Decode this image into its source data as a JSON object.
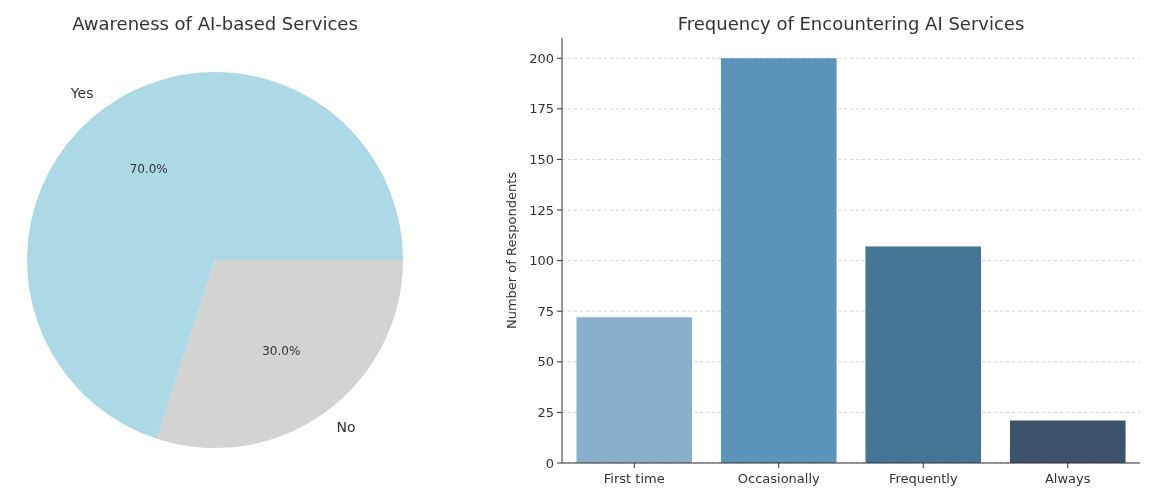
{
  "chart_data": [
    {
      "type": "pie",
      "title": "Awareness of AI-based Services",
      "categories": [
        "Yes",
        "No"
      ],
      "values": [
        70,
        30
      ],
      "colors": [
        "#add8e6",
        "#d3d3d3"
      ],
      "value_labels": [
        "70.0%",
        "30.0%"
      ]
    },
    {
      "type": "bar",
      "title": "Frequency of Encountering AI Services",
      "ylabel": "Number of Respondents",
      "categories": [
        "First time",
        "Occasionally",
        "Frequently",
        "Always"
      ],
      "values": [
        72,
        200,
        107,
        21
      ],
      "colors": [
        "#8aafca",
        "#5b93b9",
        "#447594",
        "#3d536a"
      ],
      "ylim": [
        0,
        210
      ],
      "yticks": [
        0,
        25,
        50,
        75,
        100,
        125,
        150,
        175,
        200
      ],
      "grid": "y"
    }
  ]
}
